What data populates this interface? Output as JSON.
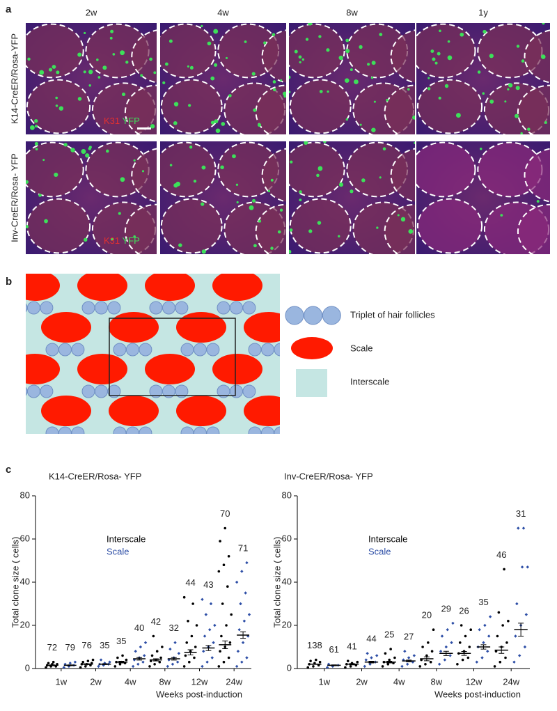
{
  "panel_a": {
    "label": "a",
    "columns": [
      "2w",
      "4w",
      "8w",
      "1y"
    ],
    "rows": [
      "K14-CreER/Rosa-YFP",
      "Inv-CreER/Rosa- YFP"
    ],
    "stain_red": "K31",
    "stain_green": "YFP"
  },
  "panel_b": {
    "label": "b",
    "legend": [
      "Triplet of hair follicles",
      "Scale",
      "Interscale"
    ]
  },
  "panel_c": {
    "label": "c"
  },
  "chart_data": [
    {
      "type": "strip",
      "title": "K14-CreER/Rosa- YFP",
      "ylabel": "Total clone size ( cells)",
      "xlabel": "Weeks post-induction",
      "categories": [
        "1w",
        "2w",
        "4w",
        "8w",
        "12w",
        "24w"
      ],
      "ylim": [
        0,
        80
      ],
      "yticks": [
        0,
        20,
        40,
        60,
        80
      ],
      "series": [
        {
          "name": "Interscale",
          "color": "#000000",
          "values": [
            1.5,
            2,
            3,
            4,
            7.5,
            11
          ],
          "error": [
            0.2,
            0.2,
            0.4,
            0.5,
            1.2,
            1.8
          ],
          "n": [
            72,
            76,
            35,
            42,
            44,
            70
          ],
          "points": [
            [
              0.5,
              1,
              1,
              1.5,
              2,
              2,
              2.5,
              3
            ],
            [
              0.5,
              1,
              1.5,
              2,
              2,
              2.5,
              3,
              3.5,
              4
            ],
            [
              1,
              2,
              2.5,
              3,
              3,
              4,
              5,
              6
            ],
            [
              1,
              2,
              3,
              3.5,
              4,
              5,
              6,
              8,
              10,
              15
            ],
            [
              1,
              3,
              5,
              6,
              8,
              10,
              12,
              15,
              20,
              22,
              30,
              33
            ],
            [
              1,
              3,
              5,
              8,
              10,
              12,
              15,
              20,
              25,
              30,
              38,
              45,
              48,
              52,
              59,
              65
            ]
          ]
        },
        {
          "name": "Scale",
          "color": "#2d4ea6",
          "values": [
            1.5,
            2,
            4.5,
            4.5,
            9.5,
            15.5
          ],
          "error": [
            0.2,
            0.2,
            0.6,
            0.6,
            1.2,
            1.5
          ],
          "n": [
            79,
            35,
            40,
            32,
            43,
            71
          ],
          "points": [
            [
              0.5,
              1,
              1.5,
              2,
              2.5,
              3
            ],
            [
              1,
              1.5,
              2,
              2,
              2.5,
              3,
              4
            ],
            [
              1,
              2,
              3,
              4,
              5,
              6,
              8,
              10,
              12
            ],
            [
              1,
              2,
              3,
              4,
              5,
              7,
              9,
              12
            ],
            [
              1,
              3,
              5,
              8,
              10,
              12,
              15,
              18,
              20,
              25,
              30,
              32
            ],
            [
              1,
              3,
              5,
              8,
              12,
              15,
              18,
              22,
              25,
              30,
              35,
              40,
              45,
              49
            ]
          ]
        }
      ]
    },
    {
      "type": "strip",
      "title": "Inv-CreER/Rosa- YFP",
      "ylabel": "Total clone size ( cells)",
      "xlabel": "Weeks post-induction",
      "categories": [
        "1w",
        "2w",
        "4w",
        "8w",
        "12w",
        "24w"
      ],
      "ylim": [
        0,
        80
      ],
      "yticks": [
        0,
        20,
        40,
        60,
        80
      ],
      "series": [
        {
          "name": "Interscale",
          "color": "#000000",
          "values": [
            2,
            2,
            3,
            4.5,
            7,
            8.5
          ],
          "error": [
            0.1,
            0.3,
            0.4,
            0.9,
            0.9,
            1.5
          ],
          "n": [
            138,
            41,
            25,
            20,
            26,
            46
          ],
          "points": [
            [
              0.5,
              1,
              1.5,
              2,
              2.5,
              3,
              3.5,
              4
            ],
            [
              0.5,
              1,
              1.5,
              2,
              2.5,
              3,
              3.5
            ],
            [
              1,
              2,
              2.5,
              3,
              4,
              5,
              7,
              9
            ],
            [
              1,
              2,
              3,
              4,
              6,
              8,
              10,
              12,
              18
            ],
            [
              2,
              4,
              5,
              7,
              8,
              10,
              12,
              15,
              18,
              20
            ],
            [
              1,
              3,
              5,
              8,
              10,
              12,
              15,
              20,
              22,
              26,
              46
            ]
          ]
        },
        {
          "name": "Scale",
          "color": "#2d4ea6",
          "values": [
            1.5,
            3,
            3.5,
            7,
            10,
            18
          ],
          "error": [
            0.2,
            0.4,
            0.4,
            1,
            1,
            3
          ],
          "n": [
            61,
            44,
            27,
            29,
            35,
            31
          ],
          "points": [
            [
              0.5,
              1,
              1.5,
              2
            ],
            [
              1,
              2,
              3,
              4,
              5,
              6,
              7
            ],
            [
              1,
              2,
              3,
              4,
              5,
              6,
              8
            ],
            [
              2,
              4,
              6,
              8,
              10,
              12,
              15,
              18,
              21
            ],
            [
              3,
              5,
              8,
              10,
              12,
              15,
              18,
              20,
              24
            ],
            [
              3,
              6,
              10,
              15,
              20,
              25,
              30,
              47,
              47,
              65,
              65
            ]
          ]
        }
      ]
    }
  ]
}
